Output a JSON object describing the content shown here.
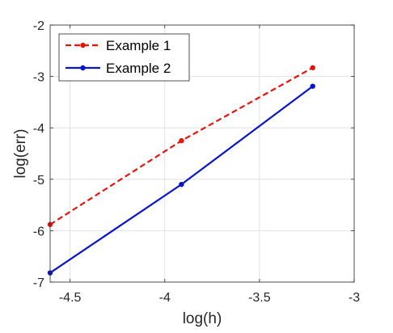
{
  "chart_data": {
    "type": "line",
    "title": "",
    "xlabel": "log(h)",
    "ylabel": "log(err)",
    "xlim": [
      -4.6052,
      -3.0
    ],
    "ylim": [
      -7,
      -2
    ],
    "xticks": [
      -4.5,
      -4,
      -3.5,
      -3
    ],
    "xtick_labels": [
      "-4.5",
      "-4",
      "-3.5",
      "-3"
    ],
    "yticks": [
      -7,
      -6,
      -5,
      -4,
      -3,
      -2
    ],
    "ytick_labels": [
      "-7",
      "-6",
      "-5",
      "-4",
      "-3",
      "-2"
    ],
    "grid": true,
    "legend_position": "top-left",
    "series": [
      {
        "name": "Example 1",
        "color": "#e8140c",
        "line_style": "dashed",
        "marker": "circle",
        "x": [
          -4.6052,
          -3.912,
          -3.2189
        ],
        "y": [
          -5.88,
          -4.25,
          -2.83
        ]
      },
      {
        "name": "Example 2",
        "color": "#0a14c8",
        "line_style": "solid",
        "marker": "circle",
        "x": [
          -4.6052,
          -3.912,
          -3.2189
        ],
        "y": [
          -6.82,
          -5.1,
          -3.19
        ]
      }
    ]
  }
}
